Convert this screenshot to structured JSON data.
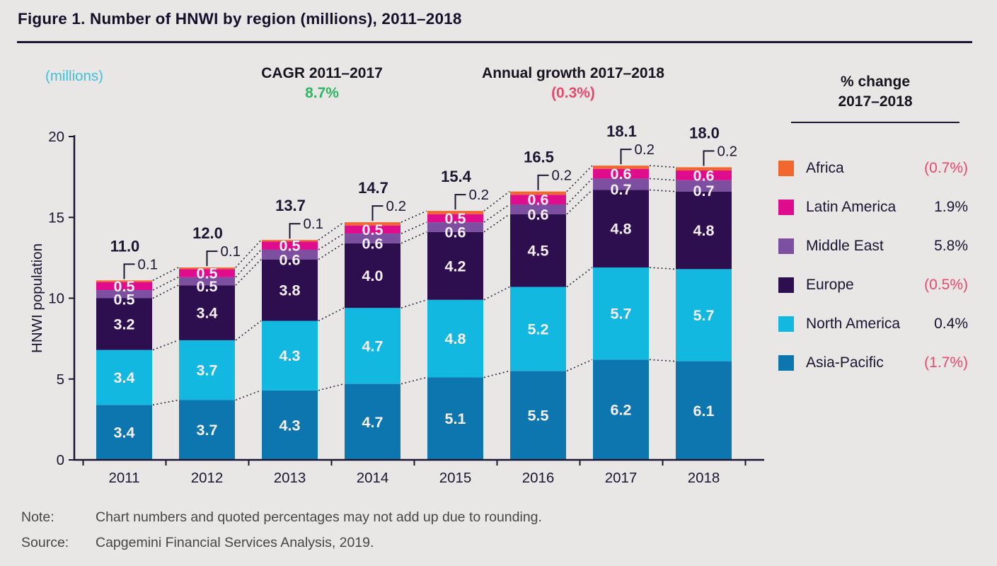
{
  "title": "Figure 1. Number of HNWI by region (millions), 2011–2018",
  "header": {
    "unit_label": "(millions)",
    "cagr_label": "CAGR 2011–2017",
    "cagr_value": "8.7%",
    "growth_label": "Annual growth 2017–2018",
    "growth_value": "(0.3%)"
  },
  "legend": {
    "title_line1": "% change",
    "title_line2": "2017–2018",
    "items": [
      {
        "label": "Africa",
        "value": "(0.7%)",
        "negative": true
      },
      {
        "label": "Latin America",
        "value": "1.9%",
        "negative": false
      },
      {
        "label": "Middle East",
        "value": "5.8%",
        "negative": false
      },
      {
        "label": "Europe",
        "value": "(0.5%)",
        "negative": true
      },
      {
        "label": "North America",
        "value": "0.4%",
        "negative": false
      },
      {
        "label": "Asia-Pacific",
        "value": "(1.7%)",
        "negative": true
      }
    ]
  },
  "chart_data": {
    "type": "bar",
    "stacked": true,
    "title": "Number of HNWI by region (millions), 2011–2018",
    "xlabel": "",
    "ylabel": "HNWI population",
    "ylim": [
      0,
      20
    ],
    "yticks": [
      0,
      5,
      10,
      15,
      20
    ],
    "grid": false,
    "legend_position": "right",
    "categories": [
      "2011",
      "2012",
      "2013",
      "2014",
      "2015",
      "2016",
      "2017",
      "2018"
    ],
    "series": [
      {
        "name": "Asia-Pacific",
        "color": "#0e76af",
        "values": [
          3.4,
          3.7,
          4.3,
          4.7,
          5.1,
          5.5,
          6.2,
          6.1
        ]
      },
      {
        "name": "North America",
        "color": "#12b8e0",
        "values": [
          3.4,
          3.7,
          4.3,
          4.7,
          4.8,
          5.2,
          5.7,
          5.7
        ]
      },
      {
        "name": "Europe",
        "color": "#2d0e4e",
        "values": [
          3.2,
          3.4,
          3.8,
          4.0,
          4.2,
          4.5,
          4.8,
          4.8
        ]
      },
      {
        "name": "Middle East",
        "color": "#7c4fa0",
        "values": [
          0.5,
          0.5,
          0.6,
          0.6,
          0.6,
          0.6,
          0.7,
          0.7
        ]
      },
      {
        "name": "Latin America",
        "color": "#e00c8e",
        "values": [
          0.5,
          0.5,
          0.5,
          0.5,
          0.5,
          0.6,
          0.6,
          0.6
        ]
      },
      {
        "name": "Africa",
        "color": "#f2662f",
        "values": [
          0.1,
          0.1,
          0.1,
          0.2,
          0.2,
          0.2,
          0.2,
          0.2
        ]
      }
    ],
    "total_labels": [
      "11.0",
      "12.0",
      "13.7",
      "14.7",
      "15.4",
      "16.5",
      "18.1",
      "18.0"
    ],
    "africa_callout_labels": [
      "0.1",
      "0.1",
      "0.1",
      "0.2",
      "0.2",
      "0.2",
      "0.2",
      "0.2"
    ]
  },
  "notes": {
    "note_label": "Note:",
    "note_text": "Chart numbers and quoted percentages may not add up due to rounding.",
    "source_label": "Source:",
    "source_text": "Capgemini Financial Services Analysis, 2019."
  },
  "colors": {
    "negative_pink": "#e9486b",
    "cagr_green": "#2fb566",
    "unit_cyan": "#3ec0dc",
    "axis_dark": "#1b1631",
    "bar_label": "#f7f1fb",
    "background": "#e8e7e5"
  }
}
